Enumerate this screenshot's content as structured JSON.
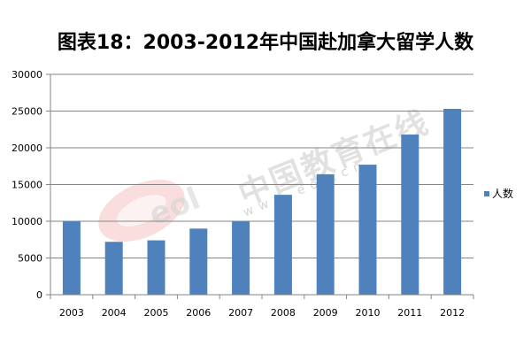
{
  "chart_data": {
    "type": "bar",
    "title": "图表18：2003-2012年中国赴加拿大留学人数",
    "categories": [
      "2003",
      "2004",
      "2005",
      "2006",
      "2007",
      "2008",
      "2009",
      "2010",
      "2011",
      "2012"
    ],
    "series": [
      {
        "name": "人数",
        "values": [
          10000,
          7200,
          7400,
          9000,
          10000,
          13600,
          16400,
          17700,
          21800,
          25300
        ],
        "color": "#4f81bd"
      }
    ],
    "ylim": [
      0,
      30000
    ],
    "yticks": [
      0,
      5000,
      10000,
      15000,
      20000,
      25000,
      30000
    ],
    "grid": true,
    "legend": "right"
  },
  "watermark": {
    "cn_text": "中国教育在线",
    "url_text": "www.eol.cn",
    "logo_text": "eol"
  }
}
